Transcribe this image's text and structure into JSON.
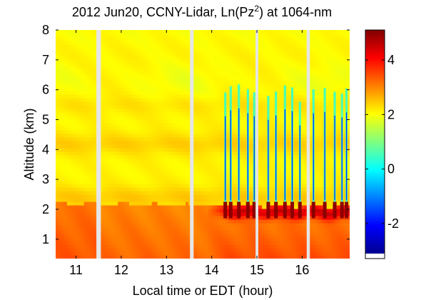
{
  "chart_data": {
    "type": "heatmap",
    "title": {
      "prefix": "2012 Jun20, CCNY-Lidar, Ln(Pz",
      "superscript": "2",
      "suffix": ") at 1064-nm"
    },
    "xlabel": "Local time or EDT (hour)",
    "ylabel": "Altitude (km)",
    "xlim": [
      10.55,
      17.05
    ],
    "ylim": [
      0.35,
      8.0
    ],
    "xticks": [
      11,
      12,
      13,
      14,
      15,
      16
    ],
    "yticks": [
      1,
      2,
      3,
      4,
      5,
      6,
      7,
      8
    ],
    "colorbar": {
      "clim": [
        -3.1,
        5.1
      ],
      "ticks": [
        -2,
        0,
        2,
        4
      ],
      "colormap": "jet"
    },
    "data_gaps_hours": [
      [
        11.45,
        11.55
      ],
      [
        13.52,
        13.6
      ],
      [
        14.97,
        15.03
      ],
      [
        16.1,
        16.17
      ]
    ],
    "cloud_spikes_hours": [
      14.3,
      14.42,
      14.6,
      14.8,
      14.94,
      15.25,
      15.42,
      15.62,
      15.78,
      15.95,
      16.25,
      16.5,
      16.72,
      16.88,
      16.98
    ],
    "layers": {
      "surface_value": 3.3,
      "boundary_layer_top_km_morning": 2.2,
      "boundary_layer_top_km_afternoon": 2.1,
      "free_troposphere_value": 2.1,
      "elevated_layer_km": [
        3.8,
        4.6
      ],
      "pbl_top_peak_value": 5.0
    }
  }
}
